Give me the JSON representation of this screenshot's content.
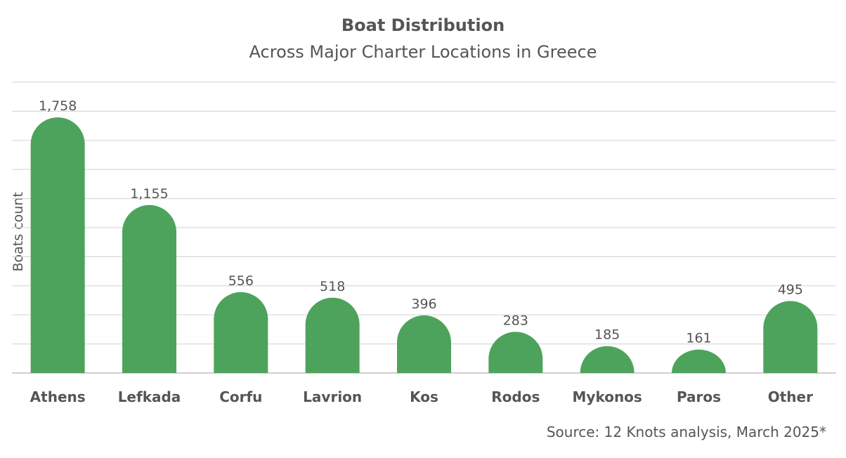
{
  "chart_data": {
    "type": "bar",
    "title": "Boat Distribution",
    "subtitle": "Across Major Charter Locations in Greece",
    "ylabel": "Boats count",
    "xlabel": "",
    "categories": [
      "Athens",
      "Lefkada",
      "Corfu",
      "Lavrion",
      "Kos",
      "Rodos",
      "Mykonos",
      "Paros",
      "Other"
    ],
    "values": [
      1758,
      1155,
      556,
      518,
      396,
      283,
      185,
      161,
      495
    ],
    "value_labels": [
      "1,758",
      "1,155",
      "556",
      "518",
      "396",
      "283",
      "185",
      "161",
      "495"
    ],
    "ylim": [
      0,
      2000
    ],
    "grid": true,
    "bar_color": "#4ea35c",
    "grid_color": "#d9d9d9",
    "source": "Source: 12 Knots analysis, March 2025*"
  }
}
